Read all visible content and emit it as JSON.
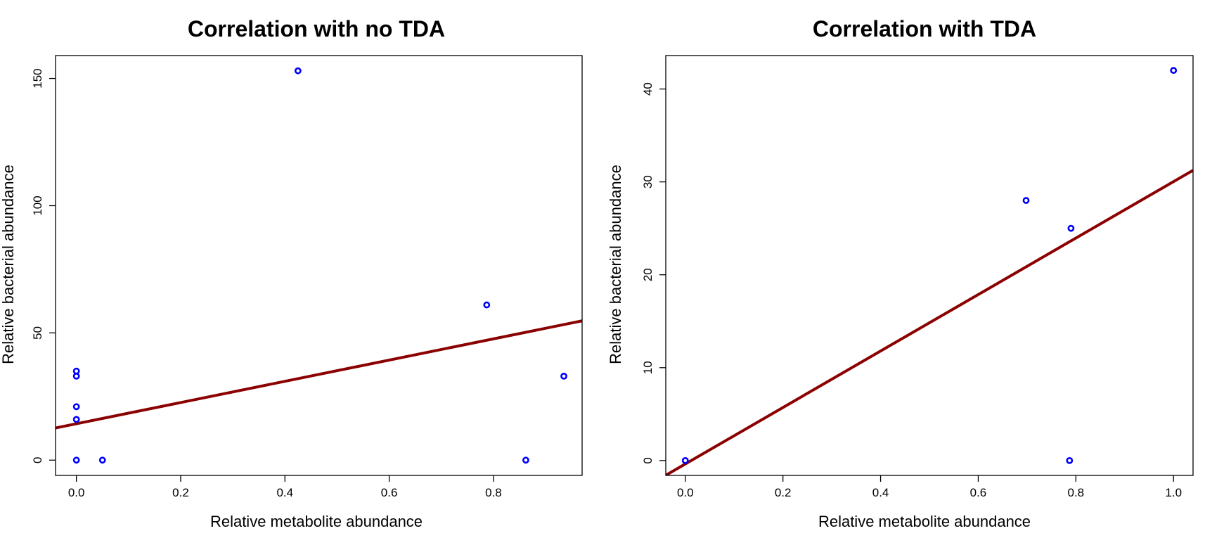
{
  "chart_data": [
    {
      "type": "scatter",
      "title": "Correlation with no TDA",
      "xlabel": "Relative metabolite abundance",
      "ylabel": "Relative bacterial abundance",
      "xlim": [
        -0.04,
        0.97
      ],
      "ylim": [
        -6,
        159
      ],
      "xticks": [
        0.0,
        0.2,
        0.4,
        0.6,
        0.8
      ],
      "xtick_labels": [
        "0.0",
        "0.2",
        "0.4",
        "0.6",
        "0.8"
      ],
      "yticks": [
        0,
        50,
        100,
        150
      ],
      "ytick_labels": [
        "0",
        "50",
        "100",
        "150"
      ],
      "grid": false,
      "point_color": "#0000ff",
      "line_color": "#8b0000",
      "points": [
        {
          "x": 0.0,
          "y": 0
        },
        {
          "x": 0.0,
          "y": 16
        },
        {
          "x": 0.0,
          "y": 21
        },
        {
          "x": 0.0,
          "y": 33
        },
        {
          "x": 0.0,
          "y": 35
        },
        {
          "x": 0.05,
          "y": 0
        },
        {
          "x": 0.425,
          "y": 153
        },
        {
          "x": 0.787,
          "y": 61
        },
        {
          "x": 0.862,
          "y": 0
        },
        {
          "x": 0.935,
          "y": 33
        }
      ],
      "regression": {
        "intercept": 14.3,
        "slope": 41.7
      }
    },
    {
      "type": "scatter",
      "title": "Correlation with TDA",
      "xlabel": "Relative metabolite abundance",
      "ylabel": "Relative bacterial abundance",
      "xlim": [
        -0.04,
        1.04
      ],
      "ylim": [
        -1.6,
        43.6
      ],
      "xticks": [
        0.0,
        0.2,
        0.4,
        0.6,
        0.8,
        1.0
      ],
      "xtick_labels": [
        "0.0",
        "0.2",
        "0.4",
        "0.6",
        "0.8",
        "1.0"
      ],
      "yticks": [
        0,
        10,
        20,
        30,
        40
      ],
      "ytick_labels": [
        "0",
        "10",
        "20",
        "30",
        "40"
      ],
      "grid": false,
      "point_color": "#0000ff",
      "line_color": "#8b0000",
      "points": [
        {
          "x": 0.0,
          "y": 0
        },
        {
          "x": 0.698,
          "y": 28
        },
        {
          "x": 0.787,
          "y": 0
        },
        {
          "x": 0.79,
          "y": 25
        },
        {
          "x": 1.0,
          "y": 42
        }
      ],
      "regression": {
        "intercept": -0.37,
        "slope": 30.4
      }
    }
  ]
}
